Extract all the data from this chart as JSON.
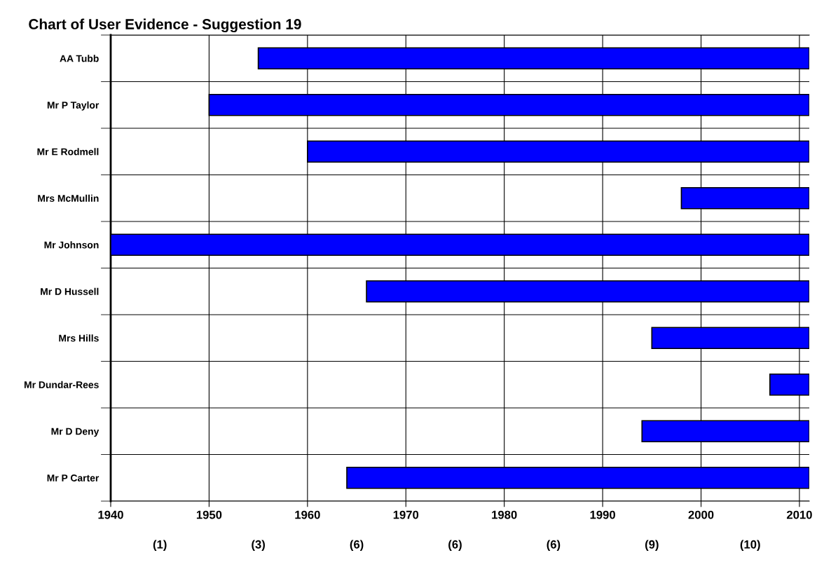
{
  "chart_data": {
    "type": "bar",
    "orientation": "horizontal",
    "title": "Chart of User Evidence - Suggestion 19",
    "categories": [
      "AA Tubb",
      "Mr P Taylor",
      "Mr E Rodmell",
      "Mrs McMullin",
      "Mr Johnson",
      "Mr D Hussell",
      "Mrs Hills",
      "Mr Dundar-Rees",
      "Mr D Deny",
      "Mr P Carter"
    ],
    "base": [
      1955,
      1950,
      1960,
      1998,
      1940,
      1966,
      1995,
      2007,
      1994,
      1964
    ],
    "values": [
      56,
      61,
      51,
      13,
      71,
      45,
      16,
      4,
      17,
      47
    ],
    "color": "#0000ff",
    "xlim": [
      1940,
      2011
    ],
    "xticks": [
      1940,
      1950,
      1960,
      1970,
      1980,
      1990,
      2000,
      2010
    ],
    "annotations": [
      "(1)",
      "(3)",
      "(6)",
      "(6)",
      "(6)",
      "(9)",
      "(10)"
    ],
    "grid": true
  }
}
